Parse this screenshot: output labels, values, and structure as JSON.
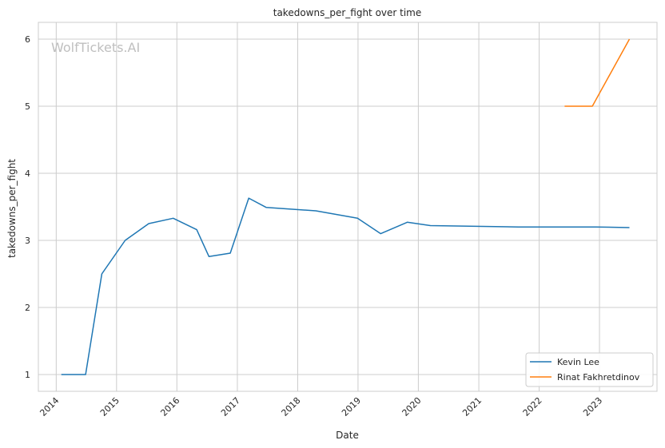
{
  "chart_data": {
    "type": "line",
    "title": "takedowns_per_fight over time",
    "xlabel": "Date",
    "ylabel": "takedowns_per_fight",
    "watermark": "WolfTickets.AI",
    "x_ticks": [
      "2014",
      "2015",
      "2016",
      "2017",
      "2018",
      "2019",
      "2020",
      "2021",
      "2022",
      "2023"
    ],
    "y_ticks": [
      1,
      2,
      3,
      4,
      5,
      6
    ],
    "xlim": [
      "2013-09-15",
      "2023-12-15"
    ],
    "ylim": [
      0.75,
      6.25
    ],
    "grid": true,
    "legend_position": "lower-right",
    "series": [
      {
        "name": "Kevin Lee",
        "color": "#1f77b4",
        "points": [
          [
            "2014-02-01",
            1.0
          ],
          [
            "2014-06-28",
            1.0
          ],
          [
            "2014-10-04",
            2.5
          ],
          [
            "2015-02-22",
            3.0
          ],
          [
            "2015-07-15",
            3.25
          ],
          [
            "2015-12-10",
            3.33
          ],
          [
            "2016-04-30",
            3.16
          ],
          [
            "2016-07-13",
            2.76
          ],
          [
            "2016-11-19",
            2.81
          ],
          [
            "2017-03-11",
            3.63
          ],
          [
            "2017-06-25",
            3.49
          ],
          [
            "2018-04-21",
            3.44
          ],
          [
            "2018-12-29",
            3.33
          ],
          [
            "2019-05-18",
            3.1
          ],
          [
            "2019-10-26",
            3.27
          ],
          [
            "2020-03-14",
            3.22
          ],
          [
            "2021-08-28",
            3.2
          ],
          [
            "2022-12-10",
            3.2
          ],
          [
            "2023-07-01",
            3.19
          ]
        ]
      },
      {
        "name": "Rinat Fakhretdinov",
        "color": "#ff7f0e",
        "points": [
          [
            "2022-06-04",
            5.0
          ],
          [
            "2022-11-19",
            5.0
          ],
          [
            "2023-07-01",
            6.0
          ]
        ]
      }
    ]
  }
}
